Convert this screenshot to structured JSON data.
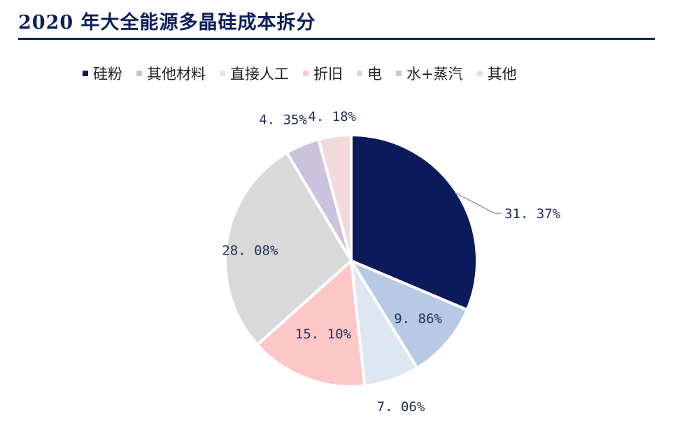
{
  "chart_data": {
    "type": "pie",
    "title": "2020 年大全能源多晶硅成本拆分",
    "legend_position": "top",
    "slices": [
      {
        "name": "硅粉",
        "value": 31.37,
        "label": "31. 37%",
        "color": "#0b1a5a"
      },
      {
        "name": "其他材料",
        "value": 9.86,
        "label": "9. 86%",
        "color": "#b7c9e4"
      },
      {
        "name": "直接人工",
        "value": 7.06,
        "label": "7. 06%",
        "color": "#dde6f1"
      },
      {
        "name": "折旧",
        "value": 15.1,
        "label": "15. 10%",
        "color": "#fdc7c8"
      },
      {
        "name": "电",
        "value": 28.08,
        "label": "28. 08%",
        "color": "#d9d9d9"
      },
      {
        "name": "水+蒸汽",
        "value": 4.35,
        "label": "4. 35%",
        "color": "#cbc3de"
      },
      {
        "name": "其他",
        "value": 4.18,
        "label": "4. 18%",
        "color": "#f2dadb"
      }
    ]
  }
}
